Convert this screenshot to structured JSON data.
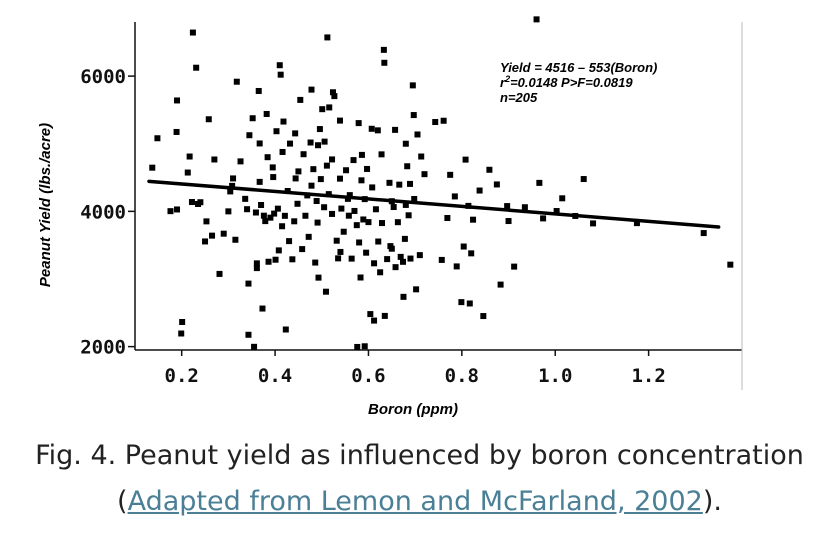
{
  "chart_data": {
    "type": "scatter",
    "xlabel": "Boron (ppm)",
    "ylabel": "Peanut Yield (lbs./acre)",
    "xlim": [
      0.1,
      1.4
    ],
    "ylim": [
      1950,
      6800
    ],
    "xticks": [
      0.2,
      0.4,
      0.6,
      0.8,
      1.0,
      1.2
    ],
    "xtick_labels": [
      "0.2",
      "0.4",
      "0.6",
      "0.8",
      "1.0",
      "1.2"
    ],
    "yticks": [
      2000,
      4000,
      6000
    ],
    "ytick_labels": [
      "2000",
      "4000",
      "6000"
    ],
    "annotation": {
      "line1": "Yield = 4516 – 553(Boron)",
      "line2_r": "r",
      "line2_sup": "2",
      "line2_rest": "=0.0148   P>F=0.0819",
      "line3": "n=205"
    },
    "regression": {
      "intercept": 4516,
      "slope": -553,
      "x_range": [
        0.13,
        1.35
      ]
    },
    "points": [
      [
        0.137,
        4646
      ],
      [
        0.148,
        5081
      ],
      [
        0.176,
        4003
      ],
      [
        0.19,
        4028
      ],
      [
        0.189,
        5174
      ],
      [
        0.19,
        5640
      ],
      [
        0.201,
        2364
      ],
      [
        0.199,
        2194
      ],
      [
        0.213,
        4574
      ],
      [
        0.217,
        4811
      ],
      [
        0.222,
        4138
      ],
      [
        0.224,
        6644
      ],
      [
        0.231,
        6124
      ],
      [
        0.235,
        4109
      ],
      [
        0.24,
        4135
      ],
      [
        0.25,
        3555
      ],
      [
        0.253,
        3852
      ],
      [
        0.258,
        5362
      ],
      [
        0.265,
        3641
      ],
      [
        0.27,
        4767
      ],
      [
        0.281,
        3075
      ],
      [
        0.29,
        3670
      ],
      [
        0.304,
        4295
      ],
      [
        0.308,
        4377
      ],
      [
        0.31,
        4487
      ],
      [
        0.315,
        3580
      ],
      [
        0.318,
        5917
      ],
      [
        0.326,
        4739
      ],
      [
        0.336,
        4185
      ],
      [
        0.34,
        4032
      ],
      [
        0.343,
        2932
      ],
      [
        0.343,
        2175
      ],
      [
        0.345,
        5126
      ],
      [
        0.352,
        5377
      ],
      [
        0.355,
        1997
      ],
      [
        0.359,
        3983
      ],
      [
        0.361,
        3161
      ],
      [
        0.361,
        3231
      ],
      [
        0.365,
        5780
      ],
      [
        0.367,
        5004
      ],
      [
        0.367,
        4436
      ],
      [
        0.37,
        4094
      ],
      [
        0.373,
        2563
      ],
      [
        0.376,
        3936
      ],
      [
        0.379,
        3856
      ],
      [
        0.382,
        5440
      ],
      [
        0.384,
        4801
      ],
      [
        0.386,
        3255
      ],
      [
        0.39,
        3907
      ],
      [
        0.396,
        4507
      ],
      [
        0.398,
        3967
      ],
      [
        0.401,
        3285
      ],
      [
        0.403,
        5185
      ],
      [
        0.406,
        4040
      ],
      [
        0.408,
        3423
      ],
      [
        0.41,
        6161
      ],
      [
        0.412,
        6021
      ],
      [
        0.415,
        3780
      ],
      [
        0.416,
        4878
      ],
      [
        0.418,
        5328
      ],
      [
        0.421,
        3934
      ],
      [
        0.423,
        2253
      ],
      [
        0.427,
        4301
      ],
      [
        0.432,
        5002
      ],
      [
        0.437,
        3291
      ],
      [
        0.441,
        3853
      ],
      [
        0.443,
        5153
      ],
      [
        0.444,
        4487
      ],
      [
        0.448,
        4112
      ],
      [
        0.45,
        4591
      ],
      [
        0.454,
        5648
      ],
      [
        0.458,
        3442
      ],
      [
        0.461,
        4845
      ],
      [
        0.465,
        3935
      ],
      [
        0.469,
        4236
      ],
      [
        0.472,
        3623
      ],
      [
        0.476,
        5018
      ],
      [
        0.478,
        5800
      ],
      [
        0.482,
        4624
      ],
      [
        0.486,
        3243
      ],
      [
        0.489,
        4153
      ],
      [
        0.491,
        3834
      ],
      [
        0.492,
        4978
      ],
      [
        0.493,
        3020
      ],
      [
        0.496,
        5217
      ],
      [
        0.498,
        4477
      ],
      [
        0.501,
        5511
      ],
      [
        0.505,
        4061
      ],
      [
        0.506,
        5031
      ],
      [
        0.509,
        2812
      ],
      [
        0.511,
        4676
      ],
      [
        0.512,
        6572
      ],
      [
        0.515,
        4255
      ],
      [
        0.516,
        5537
      ],
      [
        0.522,
        3962
      ],
      [
        0.522,
        4768
      ],
      [
        0.524,
        5761
      ],
      [
        0.527,
        5704
      ],
      [
        0.532,
        3566
      ],
      [
        0.535,
        3305
      ],
      [
        0.539,
        4484
      ],
      [
        0.539,
        5342
      ],
      [
        0.542,
        4041
      ],
      [
        0.547,
        3699
      ],
      [
        0.552,
        4608
      ],
      [
        0.556,
        4185
      ],
      [
        0.558,
        3936
      ],
      [
        0.564,
        3301
      ],
      [
        0.568,
        4758
      ],
      [
        0.57,
        4006
      ],
      [
        0.575,
        3796
      ],
      [
        0.576,
        1995
      ],
      [
        0.579,
        5305
      ],
      [
        0.58,
        3540
      ],
      [
        0.583,
        3022
      ],
      [
        0.585,
        4459
      ],
      [
        0.586,
        4835
      ],
      [
        0.589,
        3880
      ],
      [
        0.592,
        2005
      ],
      [
        0.592,
        4181
      ],
      [
        0.595,
        3389
      ],
      [
        0.597,
        4627
      ],
      [
        0.6,
        3841
      ],
      [
        0.604,
        2481
      ],
      [
        0.607,
        5221
      ],
      [
        0.608,
        4354
      ],
      [
        0.612,
        3232
      ],
      [
        0.612,
        2385
      ],
      [
        0.616,
        4031
      ],
      [
        0.62,
        5198
      ],
      [
        0.621,
        3554
      ],
      [
        0.625,
        3099
      ],
      [
        0.628,
        4843
      ],
      [
        0.629,
        3827
      ],
      [
        0.633,
        6388
      ],
      [
        0.635,
        2454
      ],
      [
        0.634,
        6197
      ],
      [
        0.64,
        3294
      ],
      [
        0.645,
        4422
      ],
      [
        0.647,
        3486
      ],
      [
        0.65,
        3448
      ],
      [
        0.654,
        4064
      ],
      [
        0.657,
        5205
      ],
      [
        0.658,
        3175
      ],
      [
        0.663,
        3840
      ],
      [
        0.666,
        4395
      ],
      [
        0.669,
        3327
      ],
      [
        0.674,
        3254
      ],
      [
        0.675,
        2736
      ],
      [
        0.678,
        3593
      ],
      [
        0.68,
        4095
      ],
      [
        0.683,
        4667
      ],
      [
        0.686,
        3942
      ],
      [
        0.689,
        4406
      ],
      [
        0.69,
        3302
      ],
      [
        0.695,
        5863
      ],
      [
        0.697,
        5424
      ],
      [
        0.698,
        4183
      ],
      [
        0.702,
        2847
      ],
      [
        0.705,
        5137
      ],
      [
        0.71,
        3353
      ],
      [
        0.713,
        4811
      ],
      [
        0.743,
        5321
      ],
      [
        0.757,
        3282
      ],
      [
        0.761,
        5340
      ],
      [
        0.769,
        3902
      ],
      [
        0.775,
        4540
      ],
      [
        0.785,
        4221
      ],
      [
        0.789,
        3186
      ],
      [
        0.799,
        2658
      ],
      [
        0.804,
        3480
      ],
      [
        0.808,
        4765
      ],
      [
        0.814,
        4081
      ],
      [
        0.817,
        2638
      ],
      [
        0.82,
        3379
      ],
      [
        0.824,
        3877
      ],
      [
        0.838,
        4308
      ],
      [
        0.846,
        2452
      ],
      [
        0.859,
        4615
      ],
      [
        0.875,
        4398
      ],
      [
        0.883,
        2917
      ],
      [
        0.897,
        4078
      ],
      [
        0.9,
        3857
      ],
      [
        0.912,
        3183
      ],
      [
        0.935,
        4061
      ],
      [
        0.96,
        6839
      ],
      [
        0.966,
        4421
      ],
      [
        0.974,
        3896
      ],
      [
        1.003,
        4005
      ],
      [
        1.015,
        4193
      ],
      [
        1.043,
        3932
      ],
      [
        1.061,
        4478
      ],
      [
        1.081,
        3822
      ],
      [
        1.175,
        3826
      ],
      [
        1.318,
        3679
      ],
      [
        1.375,
        3212
      ],
      [
        0.478,
        4380
      ],
      [
        0.395,
        4650
      ],
      [
        0.65,
        4150
      ],
      [
        0.72,
        4550
      ],
      [
        0.56,
        4240
      ],
      [
        0.43,
        3560
      ],
      [
        0.3,
        4000
      ],
      [
        0.68,
        5000
      ],
      [
        0.54,
        3400
      ]
    ]
  },
  "caption": {
    "line1": "Fig. 4. Peanut yield as influenced by boron concentration",
    "open": "(",
    "link": "Adapted from Lemon and McFarland, 2002",
    "close": ")."
  }
}
